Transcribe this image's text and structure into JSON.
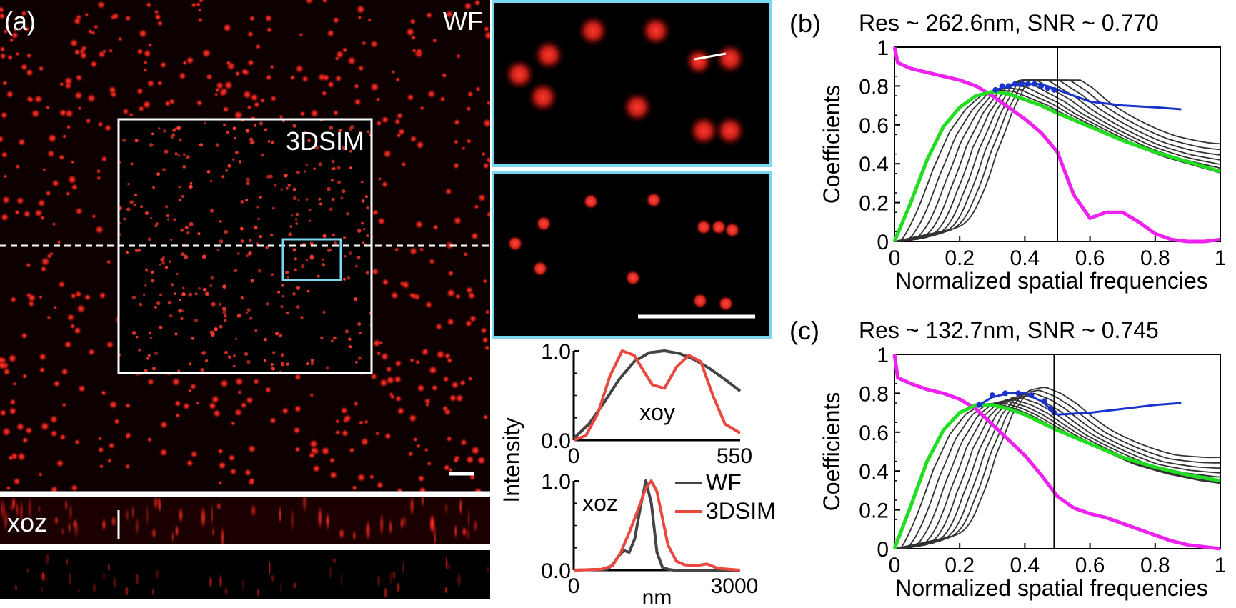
{
  "panel_a": {
    "label": "(a)",
    "wf_label": "WF",
    "sim_label": "3DSIM",
    "xoz_label": "xoz"
  },
  "panel_b_label": "(b)",
  "panel_c_label": "(c)",
  "colors": {
    "spot_red": "#ff2020",
    "box_white": "#ffffff",
    "zoom_cyan": "#7ad7ef",
    "wf_line": "#444444",
    "sim_line": "#e8483e",
    "bg_dark": "#0a0000",
    "curve_magenta": "#ee22ee",
    "curve_green": "#22dd22",
    "curve_blue": "#1a33cc",
    "curve_gray": "#333333"
  },
  "chart_data": [
    {
      "type": "line",
      "id": "xoy-profile",
      "title": "",
      "annotation": "xoy",
      "xlabel": "",
      "ylabel": "Intensity",
      "xlim": [
        0,
        550
      ],
      "ylim": [
        0,
        1
      ],
      "x_ticks": [
        "0",
        "550"
      ],
      "y_ticks": [
        "0.0",
        "1.0"
      ],
      "series": [
        {
          "name": "WF",
          "x": [
            0,
            50,
            100,
            150,
            200,
            250,
            300,
            350,
            400,
            450,
            500,
            550
          ],
          "values": [
            0.02,
            0.18,
            0.42,
            0.68,
            0.88,
            0.98,
            1.0,
            0.97,
            0.9,
            0.8,
            0.68,
            0.55
          ]
        },
        {
          "name": "3DSIM",
          "x": [
            0,
            40,
            80,
            120,
            160,
            200,
            230,
            260,
            300,
            340,
            380,
            420,
            460,
            500,
            550
          ],
          "values": [
            0.0,
            0.05,
            0.3,
            0.72,
            1.0,
            0.95,
            0.78,
            0.62,
            0.58,
            0.82,
            0.95,
            0.88,
            0.5,
            0.18,
            0.08
          ]
        }
      ]
    },
    {
      "type": "line",
      "id": "xoz-profile",
      "title": "",
      "annotation": "xoz",
      "xlabel": "nm",
      "ylabel": "Intensity",
      "xlim": [
        0,
        3000
      ],
      "ylim": [
        0,
        1
      ],
      "x_ticks": [
        "0",
        "3000"
      ],
      "y_ticks": [
        "0.0",
        "1.0"
      ],
      "legend": [
        "WF",
        "3DSIM"
      ],
      "series": [
        {
          "name": "WF",
          "x": [
            0,
            600,
            700,
            800,
            900,
            1000,
            1100,
            1200,
            1300,
            1400,
            1500,
            1600,
            1700,
            1800,
            3000
          ],
          "values": [
            0.0,
            0.01,
            0.06,
            0.15,
            0.22,
            0.2,
            0.35,
            0.7,
            1.0,
            0.75,
            0.2,
            0.03,
            0.01,
            0.0,
            0.0
          ]
        },
        {
          "name": "3DSIM",
          "x": [
            0,
            500,
            700,
            850,
            1000,
            1150,
            1300,
            1400,
            1500,
            1600,
            1700,
            1850,
            2000,
            2200,
            2400,
            2600,
            3000
          ],
          "values": [
            0.0,
            0.01,
            0.05,
            0.2,
            0.42,
            0.66,
            0.92,
            1.0,
            0.88,
            0.58,
            0.28,
            0.1,
            0.06,
            0.05,
            0.07,
            0.02,
            0.0
          ]
        }
      ]
    },
    {
      "type": "line",
      "id": "decorrelation-b",
      "title": "Res ~ 262.6nm, SNR ~ 0.770",
      "xlabel": "Normalized spatial frequencies",
      "ylabel": "Coefficients",
      "xlim": [
        0,
        1
      ],
      "ylim": [
        0,
        1
      ],
      "x_ticks": [
        "0",
        "0.2",
        "0.4",
        "0.6",
        "0.8",
        "1"
      ],
      "y_ticks": [
        "0",
        "0.2",
        "0.4",
        "0.6",
        "0.8",
        "1"
      ],
      "cutoff": 0.5,
      "series": [
        {
          "name": "magenta",
          "x": [
            0,
            0.01,
            0.05,
            0.1,
            0.15,
            0.2,
            0.25,
            0.3,
            0.35,
            0.4,
            0.45,
            0.5,
            0.55,
            0.6,
            0.65,
            0.7,
            0.75,
            0.8,
            0.85,
            0.9,
            0.95,
            1.0
          ],
          "values": [
            1.0,
            0.92,
            0.89,
            0.87,
            0.85,
            0.83,
            0.8,
            0.75,
            0.69,
            0.63,
            0.56,
            0.46,
            0.24,
            0.12,
            0.15,
            0.15,
            0.1,
            0.04,
            0.01,
            0.0,
            0.0,
            0.01
          ]
        },
        {
          "name": "green",
          "x": [
            0,
            0.05,
            0.1,
            0.15,
            0.2,
            0.25,
            0.3,
            0.35,
            0.4,
            0.45,
            0.5,
            0.6,
            0.7,
            0.8,
            0.9,
            1.0
          ],
          "values": [
            0.0,
            0.2,
            0.42,
            0.59,
            0.69,
            0.75,
            0.77,
            0.76,
            0.73,
            0.7,
            0.66,
            0.59,
            0.52,
            0.46,
            0.41,
            0.36
          ]
        },
        {
          "name": "blue",
          "x": [
            0.31,
            0.35,
            0.4,
            0.45,
            0.5,
            0.6,
            0.7,
            0.8,
            0.88
          ],
          "values": [
            0.78,
            0.8,
            0.81,
            0.81,
            0.78,
            0.72,
            0.7,
            0.69,
            0.68
          ]
        }
      ],
      "peak_markers": {
        "x": [
          0.31,
          0.33,
          0.35,
          0.37,
          0.39,
          0.41,
          0.43,
          0.45,
          0.47,
          0.49
        ],
        "values": [
          0.78,
          0.8,
          0.8,
          0.81,
          0.81,
          0.81,
          0.81,
          0.8,
          0.79,
          0.78
        ]
      }
    },
    {
      "type": "line",
      "id": "decorrelation-c",
      "title": "Res ~ 132.7nm, SNR ~ 0.745",
      "xlabel": "Normalized spatial frequencies",
      "ylabel": "Coefficients",
      "xlim": [
        0,
        1
      ],
      "ylim": [
        0,
        1
      ],
      "x_ticks": [
        "0",
        "0.2",
        "0.4",
        "0.6",
        "0.8",
        "1"
      ],
      "y_ticks": [
        "0",
        "0.2",
        "0.4",
        "0.6",
        "0.8",
        "1"
      ],
      "cutoff": 0.49,
      "series": [
        {
          "name": "magenta",
          "x": [
            0,
            0.01,
            0.05,
            0.1,
            0.15,
            0.2,
            0.25,
            0.3,
            0.35,
            0.4,
            0.45,
            0.5,
            0.55,
            0.6,
            0.65,
            0.7,
            0.75,
            0.8,
            0.85,
            0.9,
            0.95,
            1.0
          ],
          "values": [
            1.0,
            0.88,
            0.85,
            0.82,
            0.8,
            0.77,
            0.72,
            0.64,
            0.56,
            0.48,
            0.38,
            0.27,
            0.21,
            0.18,
            0.16,
            0.13,
            0.1,
            0.07,
            0.04,
            0.02,
            0.01,
            0.0
          ]
        },
        {
          "name": "green",
          "x": [
            0,
            0.05,
            0.1,
            0.15,
            0.2,
            0.25,
            0.3,
            0.35,
            0.4,
            0.45,
            0.5,
            0.6,
            0.7,
            0.8,
            0.9,
            1.0
          ],
          "values": [
            0.0,
            0.22,
            0.45,
            0.61,
            0.7,
            0.74,
            0.74,
            0.72,
            0.69,
            0.65,
            0.61,
            0.54,
            0.47,
            0.42,
            0.38,
            0.35
          ]
        },
        {
          "name": "blue",
          "x": [
            0.26,
            0.3,
            0.35,
            0.4,
            0.45,
            0.48,
            0.5,
            0.6,
            0.7,
            0.8,
            0.88
          ],
          "values": [
            0.74,
            0.78,
            0.8,
            0.8,
            0.76,
            0.72,
            0.69,
            0.7,
            0.72,
            0.74,
            0.75
          ]
        }
      ],
      "peak_markers": {
        "x": [
          0.26,
          0.3,
          0.34,
          0.38,
          0.42,
          0.46,
          0.48,
          0.49
        ],
        "values": [
          0.74,
          0.79,
          0.8,
          0.8,
          0.79,
          0.76,
          0.72,
          0.7
        ]
      }
    }
  ]
}
